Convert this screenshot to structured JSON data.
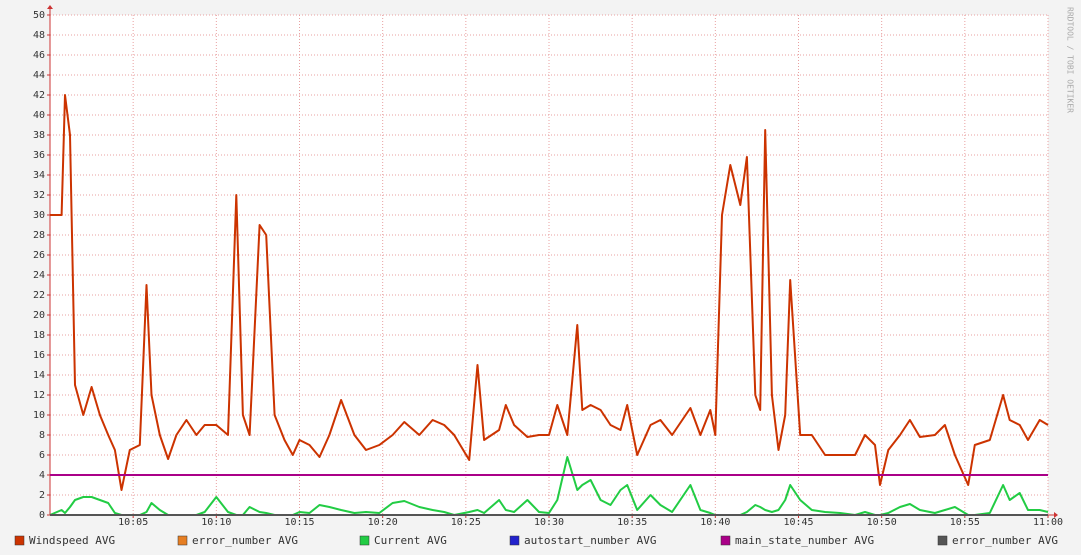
{
  "chart_data": {
    "type": "line",
    "watermark": "RRDTOOL / TOBI OETIKER",
    "x": [
      0,
      0.7,
      0.9,
      1.2,
      1.5,
      2.0,
      2.5,
      3.0,
      3.5,
      3.9,
      4.3,
      4.8,
      5.4,
      5.8,
      6.1,
      6.6,
      7.1,
      7.6,
      8.2,
      8.8,
      9.3,
      10.0,
      10.7,
      11.2,
      11.6,
      12.0,
      12.6,
      13.0,
      13.5,
      14.1,
      14.6,
      15.0,
      15.6,
      16.2,
      16.8,
      17.5,
      18.3,
      19.0,
      19.8,
      20.6,
      21.3,
      22.2,
      23.0,
      23.7,
      24.3,
      25.2,
      25.7,
      26.1,
      27.0,
      27.4,
      27.9,
      28.7,
      29.4,
      30.0,
      30.5,
      31.1,
      31.7,
      32.0,
      32.5,
      33.1,
      33.7,
      34.3,
      34.7,
      35.3,
      36.1,
      36.7,
      37.4,
      38.5,
      39.1,
      39.7,
      40.0,
      40.4,
      40.9,
      41.5,
      41.9,
      42.4,
      42.7,
      43.0,
      43.4,
      43.8,
      44.2,
      44.5,
      45.1,
      45.8,
      46.6,
      47.5,
      48.4,
      49.0,
      49.6,
      49.9,
      50.4,
      51.1,
      51.7,
      52.3,
      53.2,
      53.8,
      54.4,
      55.2,
      55.6,
      56.5,
      57.3,
      57.7,
      58.3,
      58.8,
      59.5,
      60.0
    ],
    "xlim": [
      0,
      60
    ],
    "xticks": [
      {
        "value": 5,
        "label": "10:05"
      },
      {
        "value": 10,
        "label": "10:10"
      },
      {
        "value": 15,
        "label": "10:15"
      },
      {
        "value": 20,
        "label": "10:20"
      },
      {
        "value": 25,
        "label": "10:25"
      },
      {
        "value": 30,
        "label": "10:30"
      },
      {
        "value": 35,
        "label": "10:35"
      },
      {
        "value": 40,
        "label": "10:40"
      },
      {
        "value": 45,
        "label": "10:45"
      },
      {
        "value": 50,
        "label": "10:50"
      },
      {
        "value": 55,
        "label": "10:55"
      },
      {
        "value": 60,
        "label": "11:00"
      }
    ],
    "ylim": [
      0,
      50
    ],
    "yticks": [
      0,
      2,
      4,
      6,
      8,
      10,
      12,
      14,
      16,
      18,
      20,
      22,
      24,
      26,
      28,
      30,
      32,
      34,
      36,
      38,
      40,
      42,
      44,
      46,
      48,
      50
    ],
    "grid": true,
    "series": [
      {
        "name": "Windspeed AVG",
        "color": "#cc3300",
        "values": [
          30,
          30,
          42,
          38,
          13,
          10,
          12.8,
          10,
          8,
          6.5,
          2.5,
          6.5,
          7,
          23,
          12,
          8,
          5.6,
          8,
          9.5,
          8,
          9,
          9,
          8,
          32,
          10,
          8,
          29,
          28,
          10,
          7.5,
          6,
          7.5,
          7,
          5.8,
          8,
          11.5,
          8,
          6.5,
          7,
          8,
          9.3,
          8,
          9.5,
          9,
          8,
          5.5,
          15,
          7.5,
          8.5,
          11,
          9,
          7.8,
          8,
          8,
          11,
          8,
          19,
          10.5,
          11,
          10.5,
          9,
          8.5,
          11,
          6,
          9,
          9.5,
          8,
          10.7,
          8,
          10.5,
          8,
          30,
          35,
          31,
          35.8,
          12,
          10.5,
          38.5,
          12,
          6.5,
          10,
          23.5,
          8,
          8,
          6,
          6,
          6,
          8,
          7,
          3,
          6.5,
          8,
          9.5,
          7.8,
          8,
          9,
          6,
          3,
          7,
          7.5,
          12,
          9.5,
          9,
          7.5,
          9.5,
          9
        ]
      },
      {
        "name": "error_number AVG",
        "color": "#e67e22",
        "values": [
          0,
          0,
          0,
          0,
          0,
          0,
          0,
          0,
          0,
          0,
          0,
          0,
          0,
          0,
          0,
          0,
          0,
          0,
          0,
          0,
          0,
          0,
          0,
          0,
          0,
          0,
          0,
          0,
          0,
          0,
          0,
          0,
          0,
          0,
          0,
          0,
          0,
          0,
          0,
          0,
          0,
          0,
          0,
          0,
          0,
          0,
          0,
          0,
          0,
          0,
          0,
          0,
          0,
          0,
          0,
          0,
          0,
          0,
          0,
          0,
          0,
          0,
          0,
          0,
          0,
          0,
          0,
          0,
          0,
          0,
          0,
          0,
          0,
          0,
          0,
          0,
          0,
          0,
          0,
          0,
          0,
          0,
          0,
          0,
          0,
          0,
          0,
          0,
          0,
          0,
          0,
          0,
          0,
          0,
          0,
          0,
          0,
          0,
          0,
          0,
          0,
          0,
          0,
          0,
          0,
          0
        ]
      },
      {
        "name": "Current AVG",
        "color": "#22cc44",
        "values": [
          0,
          0.5,
          0.2,
          0.8,
          1.5,
          1.8,
          1.8,
          1.5,
          1.2,
          0.2,
          0,
          0,
          0,
          0.3,
          1.2,
          0.5,
          0,
          0,
          0,
          0,
          0.3,
          1.8,
          0.3,
          0,
          0,
          0.8,
          0.3,
          0.2,
          0,
          0,
          0,
          0.3,
          0.2,
          1.0,
          0.8,
          0.5,
          0.2,
          0.3,
          0.2,
          1.2,
          1.4,
          0.8,
          0.5,
          0.3,
          0,
          0.3,
          0.5,
          0.2,
          1.5,
          0.5,
          0.3,
          1.5,
          0.3,
          0.2,
          1.5,
          5.8,
          2.5,
          3,
          3.5,
          1.5,
          1,
          2.5,
          3,
          0.5,
          2,
          1,
          0.3,
          3,
          0.5,
          0.2,
          0,
          0,
          0,
          0,
          0.3,
          1,
          0.8,
          0.5,
          0.3,
          0.5,
          1.5,
          3,
          1.5,
          0.5,
          0.3,
          0.2,
          0,
          0.3,
          0,
          0,
          0.2,
          0.8,
          1.1,
          0.5,
          0.2,
          0.5,
          0.8,
          0,
          0,
          0.2,
          3,
          1.5,
          2.2,
          0.5,
          0.5,
          0.3
        ]
      },
      {
        "name": "autostart_number AVG",
        "color": "#2222cc",
        "values": [
          0,
          0,
          0,
          0,
          0,
          0,
          0,
          0,
          0,
          0,
          0,
          0,
          0,
          0,
          0,
          0,
          0,
          0,
          0,
          0,
          0,
          0,
          0,
          0,
          0,
          0,
          0,
          0,
          0,
          0,
          0,
          0,
          0,
          0,
          0,
          0,
          0,
          0,
          0,
          0,
          0,
          0,
          0,
          0,
          0,
          0,
          0,
          0,
          0,
          0,
          0,
          0,
          0,
          0,
          0,
          0,
          0,
          0,
          0,
          0,
          0,
          0,
          0,
          0,
          0,
          0,
          0,
          0,
          0,
          0,
          0,
          0,
          0,
          0,
          0,
          0,
          0,
          0,
          0,
          0,
          0,
          0,
          0,
          0,
          0,
          0,
          0,
          0,
          0,
          0,
          0,
          0,
          0,
          0,
          0,
          0,
          0,
          0,
          0,
          0,
          0,
          0,
          0,
          0,
          0,
          0
        ]
      },
      {
        "name": "main_state_number AVG",
        "color": "#aa0088",
        "values": [
          4,
          4,
          4,
          4,
          4,
          4,
          4,
          4,
          4,
          4,
          4,
          4,
          4,
          4,
          4,
          4,
          4,
          4,
          4,
          4,
          4,
          4,
          4,
          4,
          4,
          4,
          4,
          4,
          4,
          4,
          4,
          4,
          4,
          4,
          4,
          4,
          4,
          4,
          4,
          4,
          4,
          4,
          4,
          4,
          4,
          4,
          4,
          4,
          4,
          4,
          4,
          4,
          4,
          4,
          4,
          4,
          4,
          4,
          4,
          4,
          4,
          4,
          4,
          4,
          4,
          4,
          4,
          4,
          4,
          4,
          4,
          4,
          4,
          4,
          4,
          4,
          4,
          4,
          4,
          4,
          4,
          4,
          4,
          4,
          4,
          4,
          4,
          4,
          4,
          4,
          4,
          4,
          4,
          4,
          4,
          4,
          4,
          4,
          4,
          4,
          4,
          4,
          4,
          4,
          4,
          4
        ]
      },
      {
        "name": "error_number AVG",
        "color": "#555555",
        "values": [
          0,
          0,
          0,
          0,
          0,
          0,
          0,
          0,
          0,
          0,
          0,
          0,
          0,
          0,
          0,
          0,
          0,
          0,
          0,
          0,
          0,
          0,
          0,
          0,
          0,
          0,
          0,
          0,
          0,
          0,
          0,
          0,
          0,
          0,
          0,
          0,
          0,
          0,
          0,
          0,
          0,
          0,
          0,
          0,
          0,
          0,
          0,
          0,
          0,
          0,
          0,
          0,
          0,
          0,
          0,
          0,
          0,
          0,
          0,
          0,
          0,
          0,
          0,
          0,
          0,
          0,
          0,
          0,
          0,
          0,
          0,
          0,
          0,
          0,
          0,
          0,
          0,
          0,
          0,
          0,
          0,
          0,
          0,
          0,
          0,
          0,
          0,
          0,
          0,
          0,
          0,
          0,
          0,
          0,
          0,
          0,
          0,
          0,
          0,
          0,
          0,
          0,
          0,
          0,
          0,
          0
        ]
      }
    ]
  }
}
